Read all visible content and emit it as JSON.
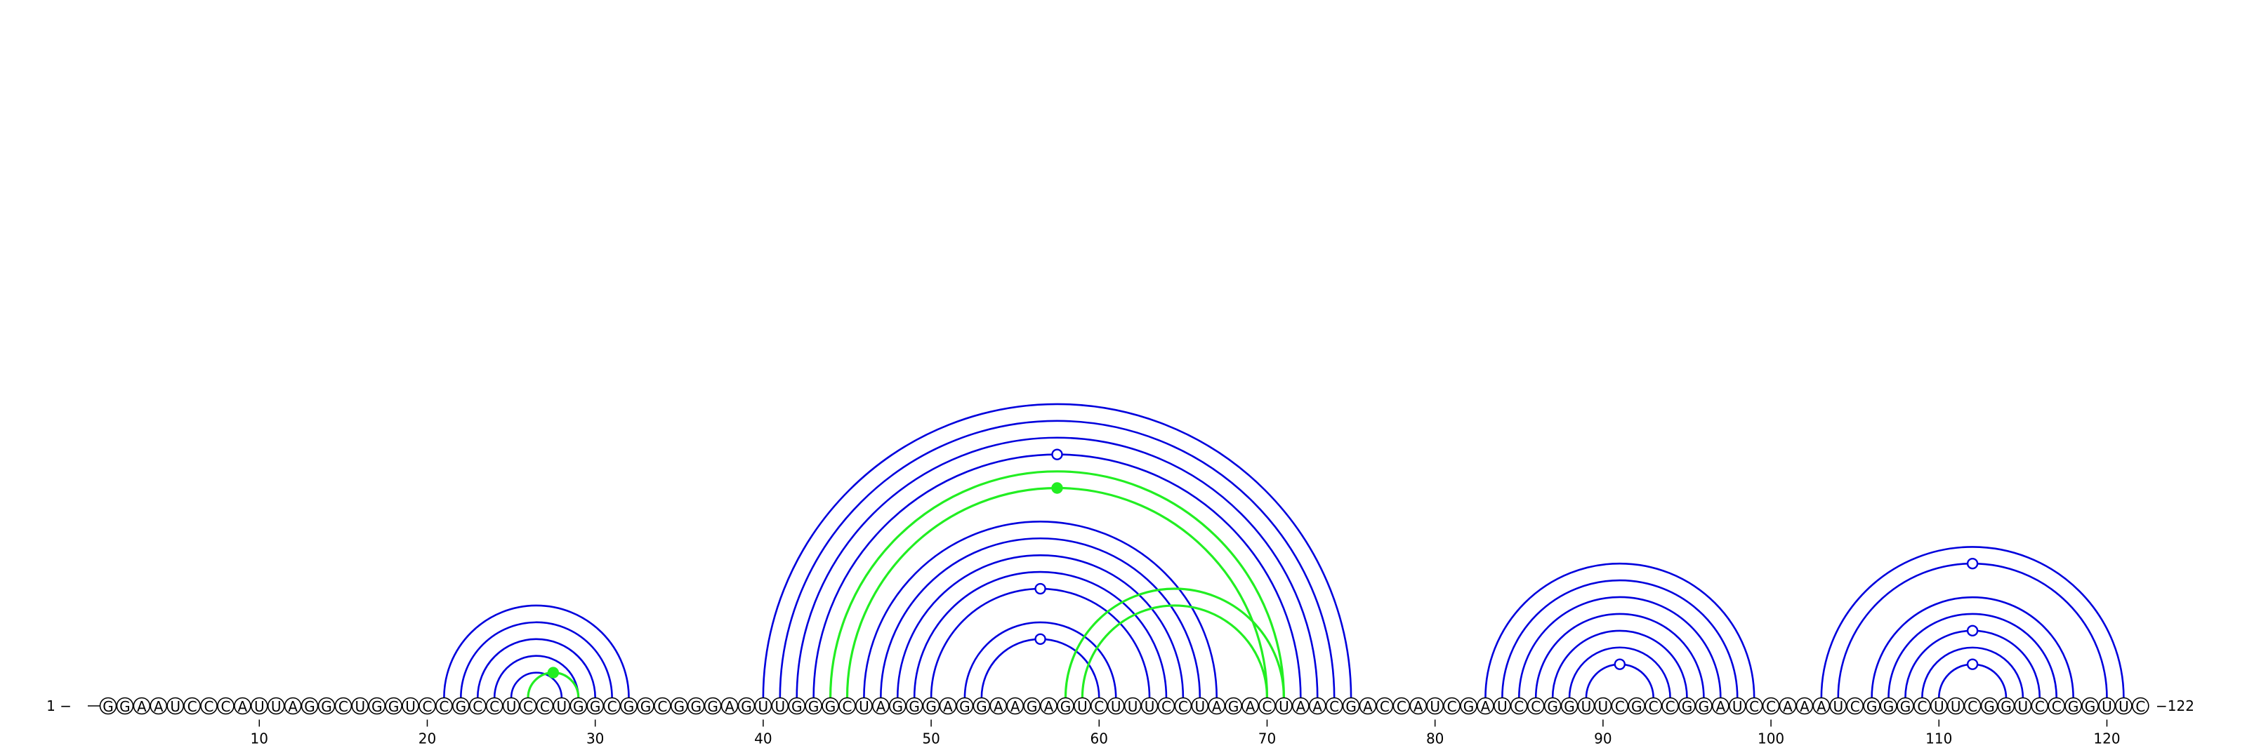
{
  "sequence": "GGAAUCCCAUUAGGCUGGUCCGCCUCCUGGCGGCGGGAGUUGGGCUAGGGAGGAAGAGUCUUUCCUAGACUAACGACCAUCGAUCCGGUUCGCCGGAUCCAAAUCGGGCUUCGGUCCGGUUC",
  "start_label": "1",
  "end_label": "122",
  "ticks": [
    10,
    20,
    30,
    40,
    50,
    60,
    70,
    80,
    90,
    100,
    110,
    120
  ],
  "colors": {
    "primary_arc": "#0000dd",
    "alternate_arc": "#22ee22",
    "backbone": "#000000"
  },
  "helices": [
    {
      "i": 21,
      "j": 32,
      "len": 5,
      "color": "primary"
    },
    {
      "i": 26,
      "j": 29,
      "len": 1,
      "color": "alternate",
      "marker": "filled"
    },
    {
      "i": 40,
      "j": 75,
      "len": 2,
      "color": "primary"
    },
    {
      "i": 42,
      "j": 73,
      "len": 2,
      "color": "primary",
      "marker": "open"
    },
    {
      "i": 44,
      "j": 71,
      "len": 2,
      "color": "alternate",
      "marker": "filled"
    },
    {
      "i": 46,
      "j": 67,
      "len": 5,
      "color": "primary",
      "marker": "open"
    },
    {
      "i": 52,
      "j": 61,
      "len": 2,
      "color": "primary",
      "marker": "open"
    },
    {
      "i": 58,
      "j": 71,
      "len": 2,
      "color": "alternate"
    },
    {
      "i": 83,
      "j": 99,
      "len": 4,
      "color": "primary"
    },
    {
      "i": 87,
      "j": 95,
      "len": 3,
      "color": "primary",
      "marker": "open"
    },
    {
      "i": 103,
      "j": 121,
      "len": 2,
      "color": "primary",
      "marker": "open"
    },
    {
      "i": 106,
      "j": 118,
      "len": 3,
      "color": "primary",
      "marker": "open"
    },
    {
      "i": 109,
      "j": 115,
      "len": 2,
      "color": "primary",
      "marker": "open"
    }
  ]
}
